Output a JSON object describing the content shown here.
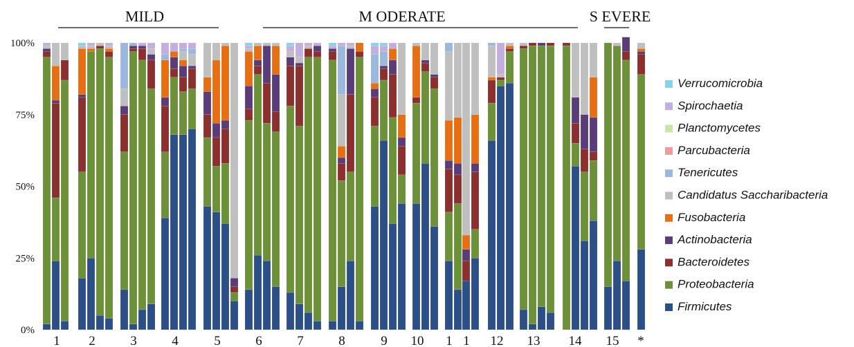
{
  "chart_data": {
    "type": "bar",
    "stacked": true,
    "percent_scale": true,
    "yticks": [
      "0%",
      "25%",
      "50%",
      "75%",
      "100%"
    ],
    "ylim": [
      0,
      100
    ],
    "grid": false,
    "legend_position": "right",
    "severity_groups": [
      {
        "label": "MILD"
      },
      {
        "label": "M ODERATE"
      },
      {
        "label": "S EVERE"
      }
    ],
    "series": [
      {
        "name": "Firmicutes",
        "color": "#2b4f86"
      },
      {
        "name": "Proteobacteria",
        "color": "#6c9139"
      },
      {
        "name": "Bacteroidetes",
        "color": "#8b2f2f"
      },
      {
        "name": "Actinobacteria",
        "color": "#5a3d78"
      },
      {
        "name": "Fusobacteria",
        "color": "#e66f14"
      },
      {
        "name": "Candidatus Saccharibacteria",
        "color": "#bfbfbf"
      },
      {
        "name": "Tenericutes",
        "color": "#9bb7de"
      },
      {
        "name": "Parcubacteria",
        "color": "#f09a9a"
      },
      {
        "name": "Planctomycetes",
        "color": "#c8e6a8"
      },
      {
        "name": "Spirochaetia",
        "color": "#c3aee0"
      },
      {
        "name": "Verrucomicrobia",
        "color": "#86d3ec"
      }
    ],
    "patients": [
      {
        "label": "1",
        "samples": [
          [
            2,
            93,
            2,
            1,
            0,
            1,
            0,
            0,
            0,
            1,
            0
          ],
          [
            24,
            22,
            33,
            1,
            12,
            8,
            0,
            0,
            0,
            0,
            0
          ],
          [
            3,
            84,
            7,
            0,
            0,
            6,
            0,
            0,
            0,
            0,
            0
          ]
        ]
      },
      {
        "label": "2",
        "samples": [
          [
            18,
            37,
            26,
            1,
            16,
            1,
            0,
            0,
            0,
            0,
            1
          ],
          [
            25,
            72,
            0,
            0,
            1,
            1,
            0,
            0,
            0,
            1,
            0
          ],
          [
            5,
            93,
            1,
            0,
            0,
            1,
            0,
            0,
            0,
            0,
            0
          ],
          [
            4,
            91,
            2,
            0,
            1,
            1,
            0,
            0,
            0,
            1,
            0
          ]
        ]
      },
      {
        "label": "3",
        "samples": [
          [
            14,
            48,
            13,
            3,
            0,
            6,
            16,
            0,
            0,
            0,
            0
          ],
          [
            2,
            95,
            1,
            1,
            0,
            0,
            1,
            0,
            0,
            0,
            0
          ],
          [
            7,
            87,
            4,
            1,
            0,
            0,
            0,
            0,
            0,
            1,
            0
          ],
          [
            9,
            75,
            10,
            2,
            0,
            2,
            0,
            0,
            0,
            2,
            0
          ]
        ]
      },
      {
        "label": "4",
        "samples": [
          [
            39,
            23,
            16,
            3,
            13,
            0,
            2,
            0,
            0,
            4,
            0
          ],
          [
            68,
            20,
            3,
            4,
            2,
            0,
            0,
            0,
            0,
            3,
            0
          ],
          [
            68,
            15,
            5,
            4,
            2,
            3,
            1,
            0,
            0,
            2,
            0
          ],
          [
            70,
            14,
            7,
            1,
            0,
            4,
            2,
            0,
            0,
            2,
            0
          ]
        ]
      },
      {
        "label": "5",
        "samples": [
          [
            43,
            24,
            8,
            8,
            5,
            12,
            0,
            0,
            0,
            0,
            0
          ],
          [
            41,
            16,
            10,
            5,
            22,
            6,
            0,
            0,
            0,
            0,
            0
          ],
          [
            37,
            21,
            12,
            3,
            26,
            1,
            0,
            0,
            0,
            0,
            0
          ],
          [
            10,
            3,
            2,
            3,
            0,
            82,
            0,
            0,
            0,
            0,
            0
          ]
        ]
      },
      {
        "label": "6",
        "samples": [
          [
            14,
            59,
            4,
            8,
            12,
            1,
            0,
            0,
            0,
            1,
            1
          ],
          [
            26,
            63,
            3,
            2,
            5,
            1,
            0,
            0,
            0,
            0,
            0
          ],
          [
            24,
            48,
            14,
            13,
            0,
            1,
            0,
            0,
            0,
            0,
            0
          ],
          [
            15,
            54,
            7,
            13,
            10,
            1,
            0,
            0,
            0,
            0,
            0
          ]
        ]
      },
      {
        "label": "7",
        "samples": [
          [
            13,
            65,
            14,
            3,
            0,
            2,
            0,
            0,
            0,
            2,
            1
          ],
          [
            9,
            62,
            21,
            1,
            0,
            2,
            0,
            0,
            0,
            5,
            0
          ],
          [
            6,
            89,
            3,
            0,
            0,
            1,
            0,
            0,
            0,
            1,
            0
          ],
          [
            3,
            92,
            2,
            2,
            0,
            0,
            0,
            0,
            0,
            1,
            0
          ]
        ]
      },
      {
        "label": "8",
        "samples": [
          [
            3,
            91,
            3,
            1,
            0,
            0,
            0,
            0,
            0,
            1,
            1
          ],
          [
            15,
            37,
            6,
            2,
            4,
            18,
            17,
            0,
            0,
            1,
            0
          ],
          [
            24,
            31,
            27,
            16,
            0,
            1,
            0,
            0,
            0,
            1,
            0
          ],
          [
            3,
            92,
            2,
            0,
            3,
            0,
            0,
            0,
            0,
            0,
            0
          ]
        ]
      },
      {
        "label": "9",
        "samples": [
          [
            43,
            28,
            10,
            3,
            2,
            0,
            10,
            0,
            0,
            3,
            1
          ],
          [
            66,
            21,
            4,
            1,
            0,
            0,
            5,
            0,
            0,
            2,
            1
          ],
          [
            37,
            37,
            15,
            5,
            4,
            0,
            0,
            0,
            0,
            2,
            0
          ],
          [
            44,
            10,
            10,
            3,
            8,
            25,
            0,
            0,
            0,
            0,
            0
          ]
        ]
      },
      {
        "label": "10",
        "samples": [
          [
            44,
            35,
            2,
            0,
            18,
            1,
            0,
            0,
            0,
            0,
            0
          ],
          [
            58,
            32,
            3,
            1,
            0,
            6,
            0,
            0,
            0,
            0,
            0
          ],
          [
            36,
            48,
            4,
            1,
            0,
            11,
            0,
            0,
            0,
            0,
            0
          ]
        ]
      },
      {
        "label": "1",
        "samples": [
          [
            24,
            17,
            15,
            3,
            14,
            24,
            3,
            0,
            0,
            0,
            0
          ],
          [
            14,
            30,
            10,
            4,
            16,
            26,
            0,
            0,
            0,
            0,
            0
          ]
        ]
      },
      {
        "label": "1",
        "samples": [
          [
            17,
            0,
            7,
            4,
            5,
            67,
            0,
            0,
            0,
            0,
            0
          ],
          [
            25,
            10,
            20,
            3,
            17,
            25,
            0,
            0,
            0,
            0,
            0
          ]
        ]
      },
      {
        "label": "12",
        "samples": [
          [
            66,
            13,
            8,
            0,
            1,
            11,
            1,
            0,
            0,
            0,
            0
          ],
          [
            85,
            2,
            1,
            0,
            0,
            1,
            0,
            0,
            0,
            11,
            0
          ],
          [
            86,
            11,
            1,
            0,
            1,
            1,
            0,
            0,
            0,
            0,
            0
          ]
        ]
      },
      {
        "label": "13",
        "samples": [
          [
            7,
            91,
            1,
            0,
            0,
            1,
            0,
            0,
            0,
            0,
            0
          ],
          [
            2,
            97,
            1,
            0,
            0,
            0,
            0,
            0,
            0,
            0,
            0
          ],
          [
            8,
            91,
            0,
            1,
            0,
            0,
            0,
            0,
            0,
            0,
            0
          ],
          [
            6,
            93,
            1,
            0,
            0,
            0,
            0,
            0,
            0,
            0,
            0
          ]
        ]
      },
      {
        "label": "14",
        "samples": [
          [
            0,
            99,
            1,
            0,
            0,
            0,
            0,
            0,
            0,
            0,
            0
          ],
          [
            57,
            8,
            7,
            9,
            0,
            19,
            0,
            0,
            0,
            0,
            0
          ],
          [
            31,
            24,
            8,
            12,
            0,
            25,
            0,
            0,
            0,
            0,
            0
          ],
          [
            38,
            21,
            3,
            12,
            14,
            12,
            0,
            0,
            0,
            0,
            0
          ]
        ]
      },
      {
        "label": "15",
        "samples": [
          [
            15,
            85,
            0,
            0,
            0,
            0,
            0,
            0,
            0,
            0,
            0
          ],
          [
            24,
            75,
            0,
            0,
            0,
            1,
            0,
            0,
            0,
            0,
            0
          ],
          [
            17,
            77,
            3,
            5,
            0,
            0,
            0,
            0,
            0,
            0,
            0
          ]
        ]
      },
      {
        "label": "*",
        "samples": [
          [
            28,
            61,
            7,
            1,
            1,
            2,
            0,
            0,
            0,
            0,
            0
          ]
        ]
      }
    ]
  }
}
